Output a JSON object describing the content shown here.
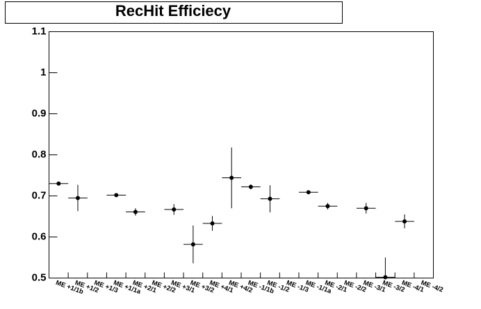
{
  "chart_data": {
    "type": "errorbar",
    "title": "RecHit Efficiecy",
    "categories": [
      "ME +1/1b",
      "ME +1/2",
      "ME +1/3",
      "ME +1/1a",
      "ME +2/1",
      "ME +2/2",
      "ME +3/1",
      "ME +3/2",
      "ME +4/1",
      "ME +4/2",
      "ME -1/1b",
      "ME -1/2",
      "ME -1/3",
      "ME -1/1a",
      "ME -2/1",
      "ME -2/2",
      "ME -3/1",
      "ME -3/2",
      "ME -4/1",
      "ME -4/2"
    ],
    "values": [
      0.73,
      0.695,
      null,
      0.702,
      0.661,
      null,
      0.667,
      0.582,
      0.633,
      0.744,
      0.722,
      0.693,
      null,
      0.709,
      0.675,
      null,
      0.67,
      0.502,
      0.638,
      null
    ],
    "errors": [
      0.004,
      0.032,
      null,
      0.003,
      0.009,
      null,
      0.013,
      0.046,
      0.018,
      0.074,
      0.006,
      0.033,
      null,
      0.003,
      0.008,
      null,
      0.013,
      0.048,
      0.017,
      null
    ],
    "color": "#000000",
    "ylim": [
      0.5,
      1.1
    ],
    "yticks": [
      0.5,
      0.6,
      0.7,
      0.8,
      0.9,
      1,
      1.1
    ]
  }
}
